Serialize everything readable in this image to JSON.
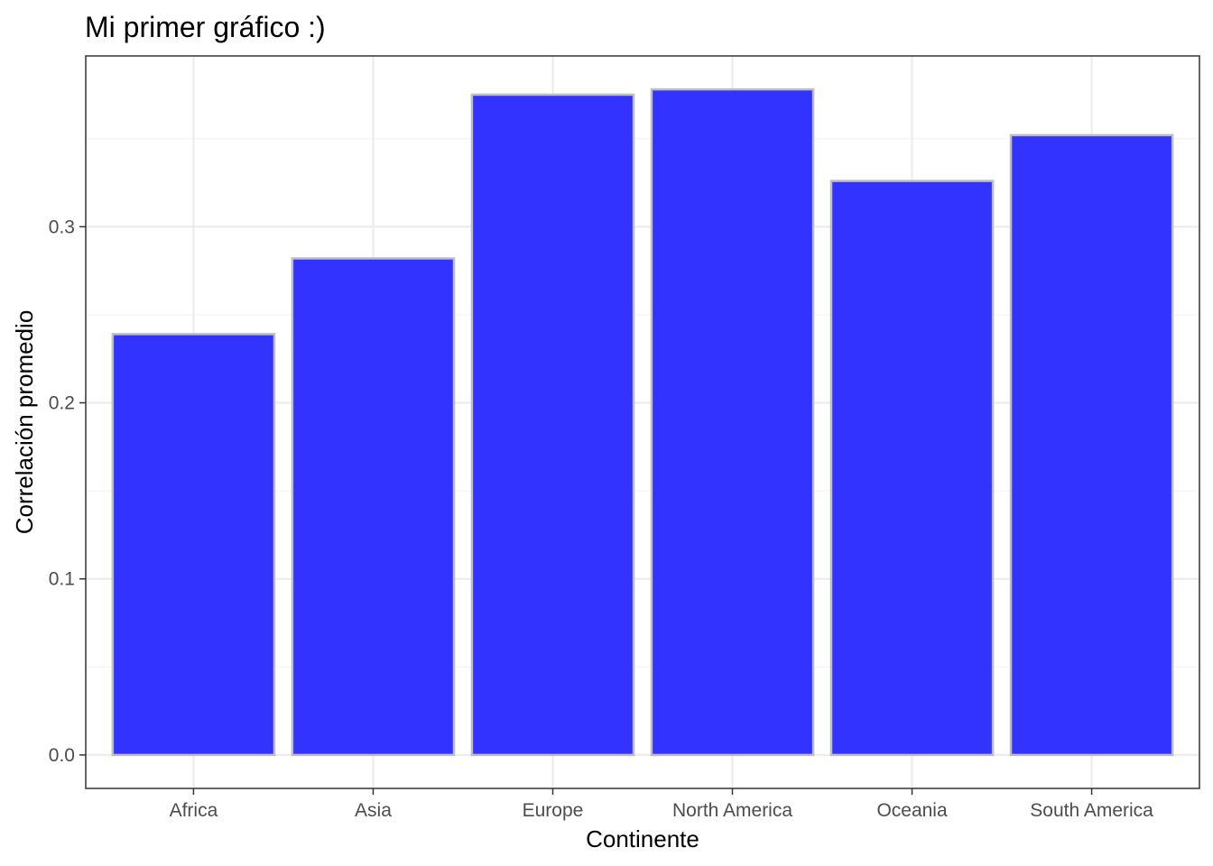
{
  "chart_data": {
    "type": "bar",
    "title": "Mi primer gráfico :)",
    "xlabel": "Continente",
    "ylabel": "Correlación promedio",
    "categories": [
      "Africa",
      "Asia",
      "Europe",
      "North America",
      "Oceania",
      "South America"
    ],
    "values": [
      0.239,
      0.282,
      0.375,
      0.378,
      0.326,
      0.352
    ],
    "ylim": [
      -0.019,
      0.397
    ],
    "yticks": [
      0.0,
      0.1,
      0.2,
      0.3
    ],
    "ytick_labels": [
      "0.0",
      "0.1",
      "0.2",
      "0.3"
    ],
    "grid": true,
    "bar_fill": "#3333ff",
    "bar_outline": "#bdbdbd",
    "panel_border": "#333333",
    "grid_color": "#ebebeb"
  }
}
